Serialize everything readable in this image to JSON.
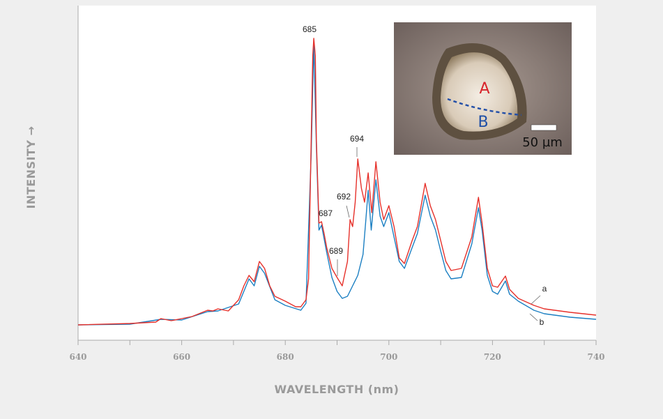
{
  "chart_data": {
    "type": "line",
    "xlabel": "WAVELENGTH (nm)",
    "ylabel": "INTENSITY →",
    "xlim": [
      640,
      740
    ],
    "xticks": [
      640,
      660,
      680,
      700,
      720,
      740
    ],
    "ylim": [
      0,
      480
    ],
    "annotations": [
      "685",
      "687",
      "689",
      "692",
      "694",
      "a",
      "b"
    ],
    "inset": {
      "label_a": "A",
      "label_b": "B",
      "scale": "50 µm"
    },
    "series": [
      {
        "name": "b",
        "color": "#1b7fc2",
        "x": [
          640,
          650,
          656,
          660,
          665,
          667,
          671,
          673,
          674,
          675,
          676,
          678,
          680,
          683,
          684,
          685,
          685.5,
          686,
          686.5,
          687,
          688,
          689,
          690,
          691,
          692,
          693,
          694,
          695,
          695.5,
          696,
          696.6,
          697.5,
          698.3,
          699,
          700,
          701,
          702,
          703,
          704.5,
          705.5,
          707,
          708,
          709,
          710,
          711,
          712,
          714,
          716,
          717.3,
          718,
          719,
          720,
          721,
          722.5,
          723.3,
          725,
          728,
          730,
          735,
          740
        ],
        "values": [
          22,
          23,
          30,
          29,
          41,
          42,
          52,
          88,
          78,
          106,
          96,
          58,
          50,
          43,
          53,
          268,
          426,
          278,
          158,
          165,
          126,
          90,
          70,
          60,
          63,
          78,
          93,
          123,
          168,
          215,
          158,
          230,
          178,
          163,
          183,
          148,
          113,
          103,
          133,
          153,
          208,
          178,
          158,
          128,
          100,
          88,
          90,
          138,
          190,
          158,
          93,
          70,
          66,
          85,
          66,
          56,
          43,
          38,
          33,
          30
        ]
      },
      {
        "name": "a",
        "color": "#e6302a",
        "x": [
          640,
          650,
          655,
          656,
          658,
          660,
          662,
          665,
          666,
          667,
          669,
          671,
          672,
          673,
          674,
          675,
          676,
          677,
          678,
          680,
          682,
          683,
          684,
          684.5,
          685,
          685.3,
          685.5,
          685.8,
          686,
          686.5,
          687,
          687.5,
          688,
          689,
          690,
          691,
          692,
          692.5,
          693,
          693.5,
          694,
          694.7,
          695.3,
          696,
          696.7,
          697.5,
          698.3,
          699,
          700,
          701,
          702,
          703,
          704.5,
          705.5,
          707,
          708,
          709,
          710,
          711,
          712,
          714,
          716,
          717.3,
          718,
          719,
          720,
          721,
          722.5,
          723.3,
          725,
          728,
          730,
          735,
          740
        ],
        "values": [
          22,
          24,
          26,
          31,
          28,
          31,
          34,
          43,
          42,
          45,
          42,
          58,
          78,
          93,
          84,
          113,
          103,
          78,
          63,
          56,
          48,
          48,
          58,
          88,
          288,
          408,
          433,
          408,
          288,
          168,
          170,
          153,
          133,
          103,
          90,
          78,
          113,
          173,
          163,
          198,
          260,
          218,
          198,
          240,
          183,
          256,
          198,
          173,
          193,
          163,
          118,
          110,
          143,
          163,
          225,
          193,
          173,
          143,
          113,
          100,
          103,
          148,
          205,
          168,
          103,
          78,
          76,
          92,
          73,
          60,
          50,
          45,
          40,
          36
        ]
      }
    ]
  }
}
